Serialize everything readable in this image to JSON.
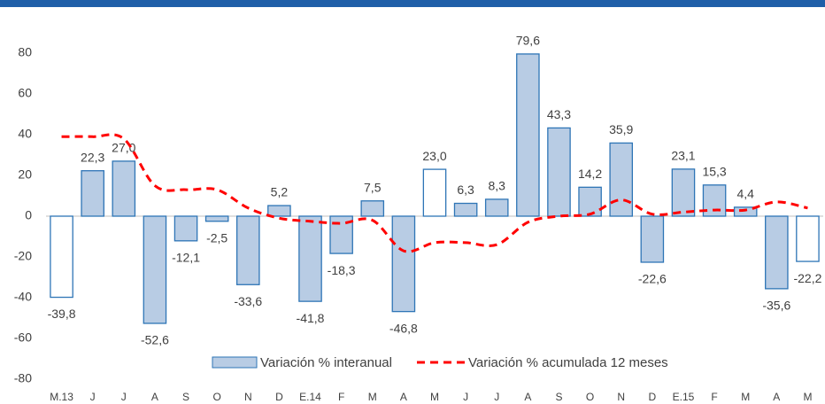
{
  "chart_data": {
    "type": "bar_line",
    "categories": [
      "M.13",
      "J",
      "J",
      "A",
      "S",
      "O",
      "N",
      "D",
      "E.14",
      "F",
      "M",
      "A",
      "M",
      "J",
      "J",
      "A",
      "S",
      "O",
      "N",
      "D",
      "E.15",
      "F",
      "M",
      "A",
      "M"
    ],
    "series": [
      {
        "name": "Variación % interanual",
        "type": "bar",
        "color": "#b8cce4",
        "edge_color": "#2e75b6",
        "bar_colors": [
          "#ffffff",
          "#b8cce4",
          "#b8cce4",
          "#b8cce4",
          "#b8cce4",
          "#b8cce4",
          "#b8cce4",
          "#b8cce4",
          "#b8cce4",
          "#b8cce4",
          "#b8cce4",
          "#b8cce4",
          "#ffffff",
          "#b8cce4",
          "#b8cce4",
          "#b8cce4",
          "#b8cce4",
          "#b8cce4",
          "#b8cce4",
          "#b8cce4",
          "#b8cce4",
          "#b8cce4",
          "#b8cce4",
          "#b8cce4",
          "#ffffff"
        ],
        "values": [
          -39.8,
          22.3,
          27.0,
          -52.6,
          -12.1,
          -2.5,
          -33.6,
          5.2,
          -41.8,
          -18.3,
          7.5,
          -46.8,
          23.0,
          6.3,
          8.3,
          79.6,
          43.3,
          14.2,
          35.9,
          -22.6,
          23.1,
          15.3,
          4.4,
          -35.6,
          -22.2
        ],
        "value_labels": [
          "-39,8",
          "22,3",
          "27,0",
          "-52,6",
          "-12,1",
          "-2,5",
          "-33,6",
          "5,2",
          "-41,8",
          "-18,3",
          "7,5",
          "-46,8",
          "23,0",
          "6,3",
          "8,3",
          "79,6",
          "43,3",
          "14,2",
          "35,9",
          "-22,6",
          "23,1",
          "15,3",
          "4,4",
          "-35,6",
          "-22,2"
        ]
      },
      {
        "name": "Variación % acumulada 12 meses",
        "type": "line",
        "color": "#ff0000",
        "dashed": true,
        "values": [
          39,
          39,
          38,
          15,
          13,
          13,
          4,
          -1,
          -2.5,
          -3.5,
          -2,
          -17,
          -13,
          -13,
          -14,
          -3,
          0,
          1,
          8,
          1,
          2,
          3,
          3,
          7,
          4
        ]
      }
    ],
    "ylim": [
      -85,
      100
    ],
    "yticks": [
      -80,
      -60,
      -40,
      -20,
      0,
      20,
      40,
      60,
      80
    ]
  }
}
